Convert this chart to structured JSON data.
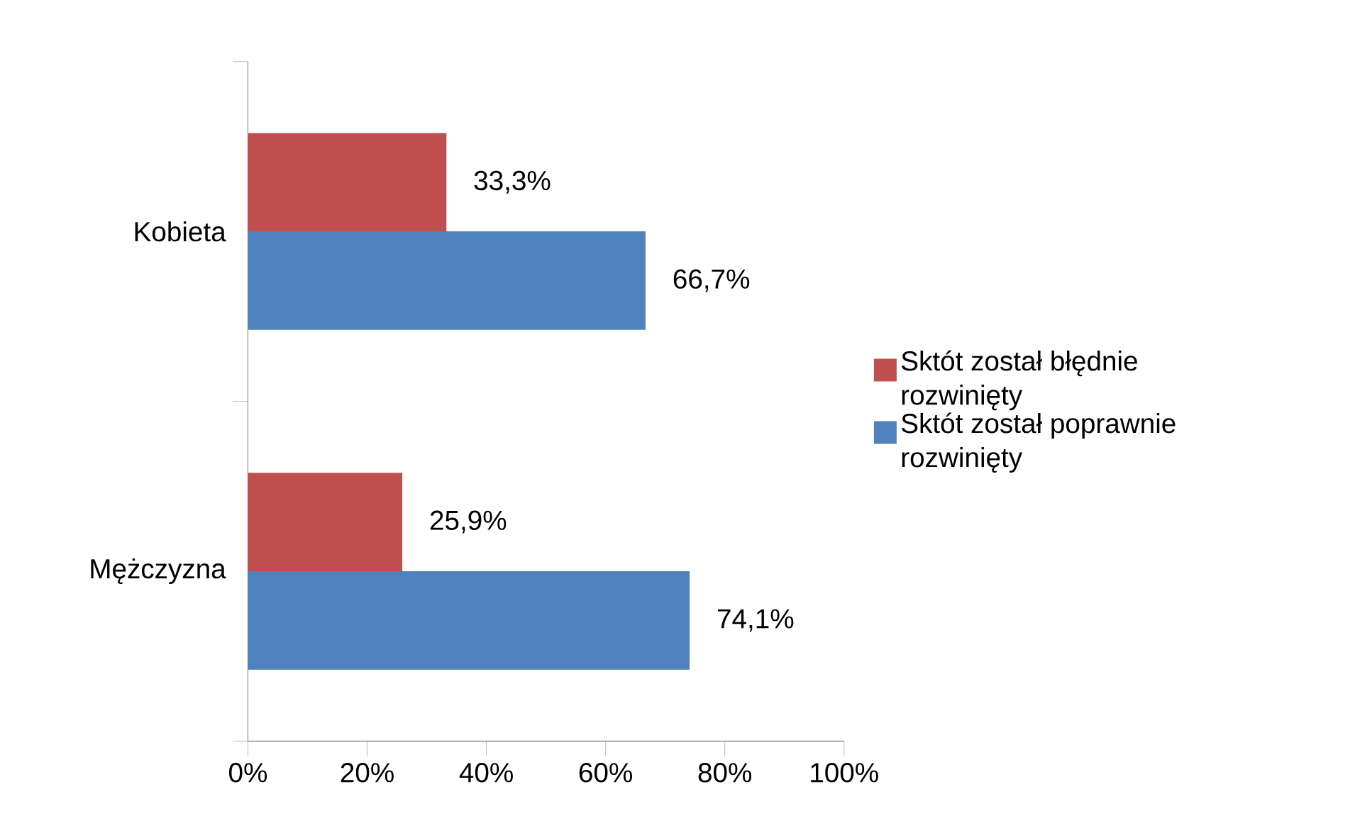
{
  "chart_data": {
    "type": "bar",
    "orientation": "horizontal",
    "categories": [
      "Kobieta",
      "Mężczyzna"
    ],
    "series": [
      {
        "name": "Sktót został błędnie rozwinięty",
        "color": "#c0504d",
        "values": [
          33.3,
          25.9
        ],
        "value_labels": [
          "33,3%",
          "25,9%"
        ]
      },
      {
        "name": "Sktót został poprawnie rozwinięty",
        "color": "#4f81bd",
        "values": [
          66.7,
          74.1
        ],
        "value_labels": [
          "66,7%",
          "74,1%"
        ]
      }
    ],
    "xlim": [
      0,
      100
    ],
    "xticks": [
      {
        "value": 0,
        "label": "0%"
      },
      {
        "value": 20,
        "label": "20%"
      },
      {
        "value": 40,
        "label": "40%"
      },
      {
        "value": 60,
        "label": "60%"
      },
      {
        "value": 80,
        "label": "80%"
      },
      {
        "value": 100,
        "label": "100%"
      }
    ],
    "legend": "right"
  }
}
